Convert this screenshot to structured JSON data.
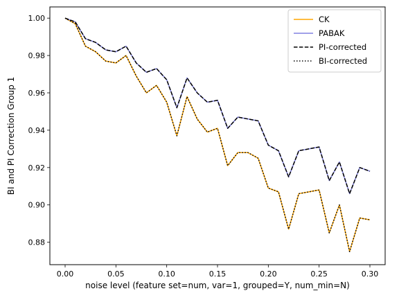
{
  "chart_data": {
    "type": "line",
    "title": "",
    "xlabel": "noise level (feature set=num, var=1, grouped=Y, num_min=N)",
    "ylabel": "BI and PI Correction Group 1",
    "xlim": [
      -0.015,
      0.315
    ],
    "ylim": [
      0.868,
      1.006
    ],
    "xticks": [
      0.0,
      0.05,
      0.1,
      0.15,
      0.2,
      0.25,
      0.3
    ],
    "xtick_labels": [
      "0.00",
      "0.05",
      "0.10",
      "0.15",
      "0.20",
      "0.25",
      "0.30"
    ],
    "yticks": [
      0.88,
      0.9,
      0.92,
      0.94,
      0.96,
      0.98,
      1.0
    ],
    "ytick_labels": [
      "0.88",
      "0.90",
      "0.92",
      "0.94",
      "0.96",
      "0.98",
      "1.00"
    ],
    "grid": false,
    "legend_position": "top-right",
    "x": [
      0.0,
      0.01,
      0.02,
      0.03,
      0.04,
      0.05,
      0.06,
      0.07,
      0.08,
      0.09,
      0.1,
      0.11,
      0.12,
      0.13,
      0.14,
      0.15,
      0.16,
      0.17,
      0.18,
      0.19,
      0.2,
      0.21,
      0.22,
      0.23,
      0.24,
      0.25,
      0.26,
      0.27,
      0.28,
      0.29,
      0.3
    ],
    "series": [
      {
        "name": "CK",
        "color": "#ffa500",
        "style": "solid",
        "values": [
          1.0,
          0.997,
          0.985,
          0.982,
          0.977,
          0.976,
          0.98,
          0.969,
          0.96,
          0.964,
          0.955,
          0.937,
          0.958,
          0.946,
          0.939,
          0.941,
          0.921,
          0.928,
          0.928,
          0.925,
          0.909,
          0.907,
          0.887,
          0.906,
          0.907,
          0.908,
          0.885,
          0.9,
          0.875,
          0.893,
          0.892
        ]
      },
      {
        "name": "PABAK",
        "color": "#8080e0",
        "style": "solid",
        "values": [
          1.0,
          0.998,
          0.989,
          0.987,
          0.983,
          0.982,
          0.985,
          0.976,
          0.971,
          0.973,
          0.967,
          0.952,
          0.968,
          0.96,
          0.955,
          0.956,
          0.941,
          0.947,
          0.946,
          0.945,
          0.932,
          0.929,
          0.915,
          0.929,
          0.93,
          0.931,
          0.913,
          0.923,
          0.906,
          0.92,
          0.918
        ]
      },
      {
        "name": "PI-corrected",
        "color": "#000000",
        "style": "dashed",
        "values": [
          1.0,
          0.998,
          0.989,
          0.987,
          0.983,
          0.982,
          0.985,
          0.976,
          0.971,
          0.973,
          0.967,
          0.952,
          0.968,
          0.96,
          0.955,
          0.956,
          0.941,
          0.947,
          0.946,
          0.945,
          0.932,
          0.929,
          0.915,
          0.929,
          0.93,
          0.931,
          0.913,
          0.923,
          0.906,
          0.92,
          0.918
        ]
      },
      {
        "name": "BI-corrected",
        "color": "#000000",
        "style": "dotted",
        "values": [
          1.0,
          0.997,
          0.985,
          0.982,
          0.977,
          0.976,
          0.98,
          0.969,
          0.96,
          0.964,
          0.955,
          0.937,
          0.958,
          0.946,
          0.939,
          0.941,
          0.921,
          0.928,
          0.928,
          0.925,
          0.909,
          0.907,
          0.887,
          0.906,
          0.907,
          0.908,
          0.885,
          0.9,
          0.875,
          0.893,
          0.892
        ]
      }
    ]
  }
}
